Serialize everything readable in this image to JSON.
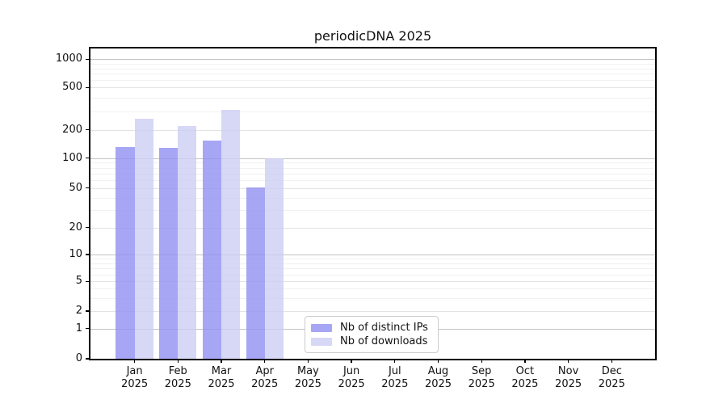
{
  "chart_data": {
    "type": "bar",
    "title": "periodicDNA 2025",
    "categories": [
      "Jan 2025",
      "Feb 2025",
      "Mar 2025",
      "Apr 2025",
      "May 2025",
      "Jun 2025",
      "Jul 2025",
      "Aug 2025",
      "Sep 2025",
      "Oct 2025",
      "Nov 2025",
      "Dec 2025"
    ],
    "series": [
      {
        "name": "Nb of distinct IPs",
        "color": "#9292f2",
        "alpha": 0.82,
        "values": [
          132,
          128,
          155,
          51,
          0,
          0,
          0,
          0,
          0,
          0,
          0,
          0
        ]
      },
      {
        "name": "Nb of downloads",
        "color": "#ccccf3",
        "alpha": 0.78,
        "values": [
          255,
          217,
          310,
          100,
          0,
          0,
          0,
          0,
          0,
          0,
          0,
          0
        ]
      }
    ],
    "yscale": "symlog",
    "yticks": [
      0,
      1,
      2,
      5,
      10,
      20,
      50,
      100,
      200,
      500,
      1000
    ],
    "ylim": [
      0,
      1300
    ],
    "xlabel": "",
    "ylabel": "",
    "grid": true,
    "legend_position": "bottom-center"
  }
}
